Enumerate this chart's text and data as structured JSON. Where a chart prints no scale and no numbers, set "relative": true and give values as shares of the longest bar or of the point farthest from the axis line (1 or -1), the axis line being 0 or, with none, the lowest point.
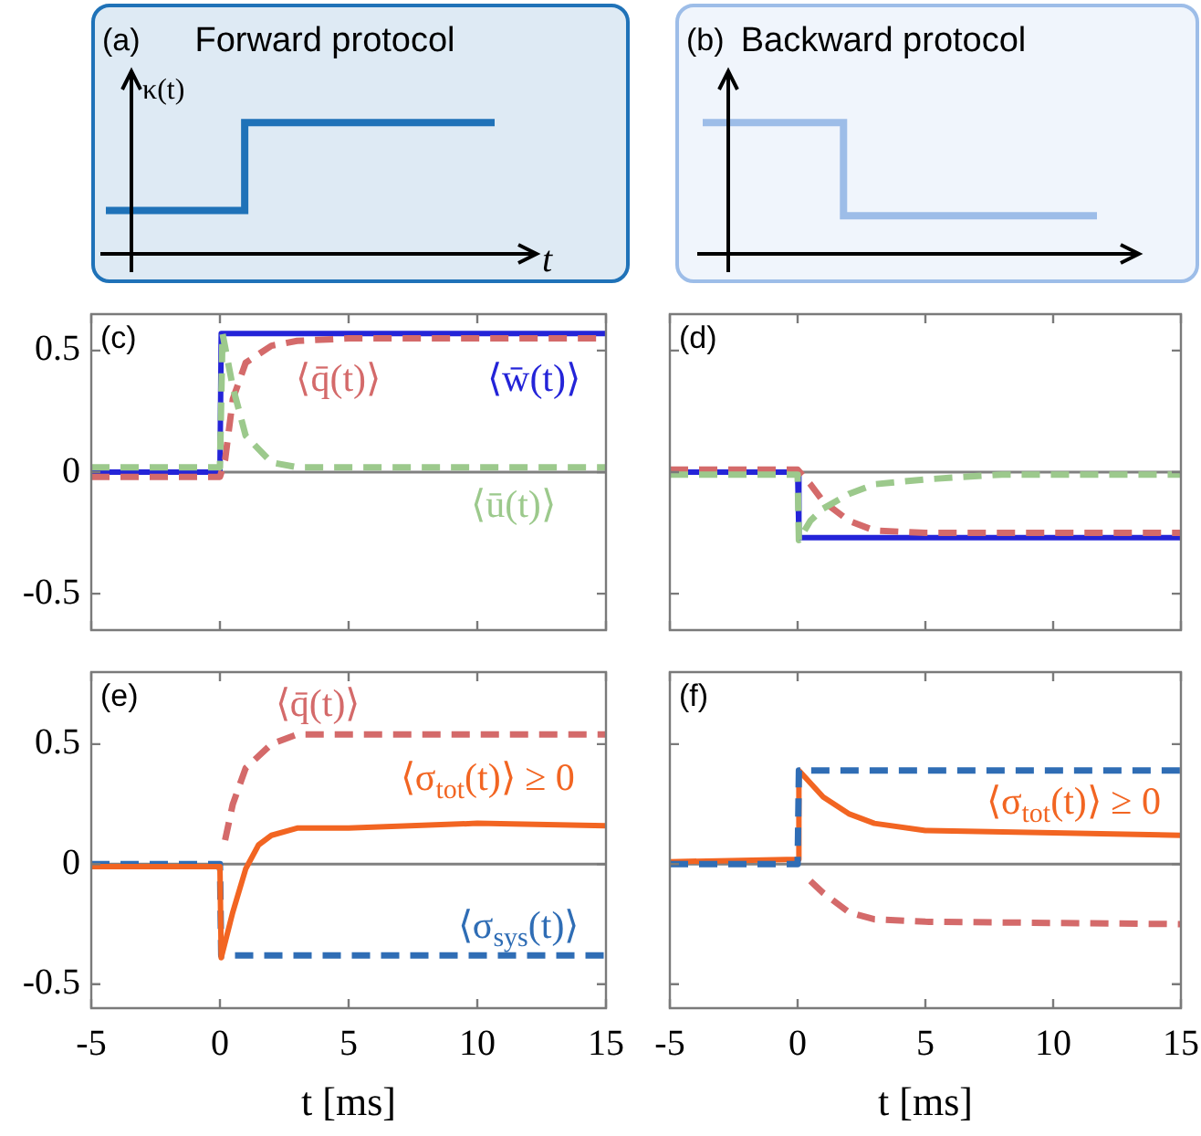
{
  "chart_data": [
    {
      "type": "step",
      "title": "Forward protocol",
      "annotations": [
        "(a)"
      ],
      "xlabel": "t",
      "ylabel": "κ(t)",
      "relative": true,
      "tick_labels": false,
      "categories": [
        null,
        null,
        null,
        null,
        null,
        null,
        null,
        null
      ],
      "series": [
        {
          "color": "#1f72b8",
          "values": [
            0.33,
            0.33,
            0.33,
            1,
            1,
            1,
            1,
            1
          ]
        }
      ]
    },
    {
      "type": "step",
      "title": "Backward protocol",
      "annotations": [
        "(b)"
      ],
      "relative": true,
      "tick_labels": false,
      "categories": [
        null,
        null,
        null,
        null,
        null,
        null,
        null,
        null
      ],
      "series": [
        {
          "color": "#9dbde8",
          "values": [
            1,
            1,
            1,
            0.29,
            0.29,
            0.29,
            0.29,
            0.29
          ]
        }
      ]
    },
    {
      "type": "line",
      "annotations": [
        "(c)"
      ],
      "xlim": [
        -5,
        15
      ],
      "xticks": [
        -5,
        0,
        5,
        10,
        15
      ],
      "ylim": [
        -0.65,
        0.65
      ],
      "yticks": [
        -0.5,
        0,
        0.5
      ],
      "tick_labels": "y",
      "ref_lines": [
        {
          "axis": "y",
          "value": 0,
          "color": "#808080"
        }
      ],
      "series": [
        {
          "name": "⟨ū(t)⟩",
          "color": "#9cc98c",
          "line_style": "dashed",
          "x": [
            -5,
            0,
            0.1,
            0.5,
            1,
            2,
            3,
            15
          ],
          "values": [
            0.02,
            0.02,
            0.57,
            0.35,
            0.15,
            0.04,
            0.02,
            0.02
          ]
        },
        {
          "name": "⟨q̄(t)⟩",
          "color": "#d46a6a",
          "line_style": "dashed",
          "x": [
            -5,
            0,
            0.2,
            0.5,
            1,
            2,
            3,
            5,
            15
          ],
          "values": [
            -0.02,
            -0.02,
            0.05,
            0.3,
            0.45,
            0.52,
            0.54,
            0.55,
            0.55
          ]
        },
        {
          "name": "⟨w̄(t)⟩",
          "color": "#2424d8",
          "line_style": "solid",
          "x": [
            -5,
            0,
            0.05,
            15
          ],
          "values": [
            0,
            0,
            0.57,
            0.57
          ]
        }
      ]
    },
    {
      "type": "line",
      "annotations": [
        "(d)"
      ],
      "xlim": [
        -5,
        15
      ],
      "xticks": [
        -5,
        0,
        5,
        10,
        15
      ],
      "ylim": [
        -0.65,
        0.65
      ],
      "yticks": [
        -0.5,
        0,
        0.5
      ],
      "tick_labels": false,
      "ref_lines": [
        {
          "axis": "y",
          "value": 0,
          "color": "#808080"
        }
      ],
      "series": [
        {
          "color": "#9cc98c",
          "line_style": "dashed",
          "x": [
            -5,
            0,
            0.05,
            0.5,
            1,
            2,
            3,
            5,
            8,
            15
          ],
          "values": [
            -0.01,
            -0.01,
            -0.28,
            -0.2,
            -0.15,
            -0.09,
            -0.05,
            -0.03,
            -0.01,
            -0.01
          ]
        },
        {
          "color": "#d46a6a",
          "line_style": "dashed",
          "x": [
            -5,
            0,
            0.5,
            1,
            2,
            3,
            5,
            15
          ],
          "values": [
            0.01,
            0.01,
            -0.05,
            -0.12,
            -0.2,
            -0.24,
            -0.25,
            -0.25
          ]
        },
        {
          "color": "#2424d8",
          "line_style": "solid",
          "x": [
            -5,
            0,
            0.05,
            15
          ],
          "values": [
            0,
            0,
            -0.27,
            -0.27
          ]
        }
      ]
    },
    {
      "type": "line",
      "annotations": [
        "(e)"
      ],
      "xlabel": "t [ms]",
      "xlim": [
        -5,
        15
      ],
      "xticks": [
        -5,
        0,
        5,
        10,
        15
      ],
      "ylim": [
        -0.6,
        0.8
      ],
      "yticks": [
        -0.5,
        0,
        0.5
      ],
      "ref_lines": [
        {
          "axis": "y",
          "value": 0,
          "color": "#808080"
        }
      ],
      "series": [
        {
          "name": "⟨q̄(t)⟩",
          "color": "#d46a6a",
          "line_style": "dashed",
          "x": [
            0.2,
            0.5,
            1,
            2,
            3,
            5,
            15
          ],
          "values": [
            0.1,
            0.25,
            0.4,
            0.5,
            0.54,
            0.54,
            0.54
          ]
        },
        {
          "name": "⟨σ$_{tot}$(t)⟩ ≥ 0",
          "color": "#f26522",
          "line_style": "solid",
          "x": [
            -5,
            0,
            0.05,
            0.5,
            1,
            1.5,
            2,
            3,
            5,
            10,
            15
          ],
          "values": [
            -0.01,
            -0.01,
            -0.39,
            -0.2,
            -0.02,
            0.08,
            0.12,
            0.15,
            0.15,
            0.17,
            0.16
          ]
        },
        {
          "name": "⟨σ$_{sys}$(t)⟩",
          "color": "#2f6db5",
          "line_style": "dashed",
          "x": [
            -5,
            0,
            0.05,
            15
          ],
          "values": [
            0,
            0,
            -0.38,
            -0.38
          ]
        }
      ]
    },
    {
      "type": "line",
      "annotations": [
        "(f)"
      ],
      "xlabel": "t [ms]",
      "xlim": [
        -5,
        15
      ],
      "xticks": [
        -5,
        0,
        5,
        10,
        15
      ],
      "ylim": [
        -0.6,
        0.8
      ],
      "yticks": [
        -0.5,
        0,
        0.5
      ],
      "tick_labels": "x",
      "ref_lines": [
        {
          "axis": "y",
          "value": 0,
          "color": "#808080"
        }
      ],
      "series": [
        {
          "color": "#2f6db5",
          "line_style": "dashed",
          "x": [
            -5,
            0,
            0.05,
            15
          ],
          "values": [
            0,
            0,
            0.39,
            0.39
          ]
        },
        {
          "name": "⟨σ$_{tot}$(t)⟩ ≥ 0",
          "color": "#f26522",
          "line_style": "solid",
          "x": [
            -5,
            0,
            0.05,
            1,
            2,
            3,
            5,
            10,
            15
          ],
          "values": [
            0.01,
            0.02,
            0.39,
            0.28,
            0.21,
            0.17,
            0.14,
            0.13,
            0.12
          ]
        },
        {
          "color": "#d46a6a",
          "line_style": "dashed",
          "x": [
            0.5,
            1,
            2,
            3,
            5,
            15
          ],
          "values": [
            -0.07,
            -0.12,
            -0.2,
            -0.23,
            -0.24,
            -0.25
          ]
        }
      ]
    }
  ]
}
